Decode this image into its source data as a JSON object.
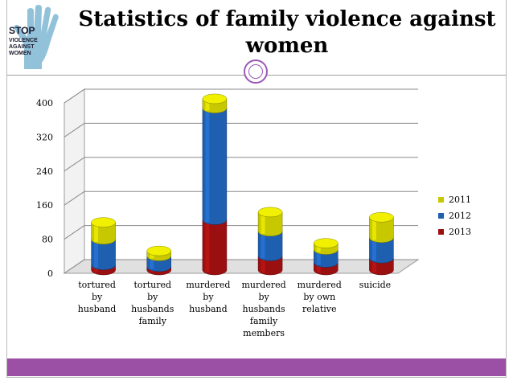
{
  "slide": {
    "title": "Statistics of family violence against women",
    "logo": {
      "text_lines": [
        "STOP",
        "VIOLENCE",
        "AGAINST",
        "WOMEN"
      ],
      "icon": "hand-icon"
    }
  },
  "colors": {
    "2011": "#c8c800",
    "2012": "#1f5fb0",
    "2013": "#9a1010",
    "accent": "#9b4fa5"
  },
  "chart_data": {
    "type": "bar",
    "stacked": true,
    "three_d": true,
    "title": "Statistics of family violence against women",
    "categories": [
      [
        "tortured",
        "by",
        "husband"
      ],
      [
        "tortured",
        "by",
        "husbands",
        "family"
      ],
      [
        "murdered",
        "by",
        "husband"
      ],
      [
        "murdered",
        "by",
        "husbands",
        "family",
        "members"
      ],
      [
        "murdered",
        "by own",
        "relative"
      ],
      [
        "suicide"
      ]
    ],
    "series": [
      {
        "name": "2013",
        "values": [
          12,
          8,
          118,
          33,
          18,
          28
        ]
      },
      {
        "name": "2012",
        "values": [
          60,
          25,
          262,
          58,
          30,
          48
        ]
      },
      {
        "name": "2011",
        "values": [
          40,
          12,
          22,
          45,
          15,
          48
        ]
      }
    ],
    "legend_order": [
      "2011",
      "2012",
      "2013"
    ],
    "ylim": [
      0,
      400
    ],
    "yticks": [
      0,
      80,
      160,
      240,
      320,
      400
    ],
    "ytick_labels": [
      "0",
      "80",
      "160",
      "240",
      "320",
      "400"
    ],
    "xlabel": "",
    "ylabel": "",
    "grid": true,
    "legend_position": "right"
  }
}
